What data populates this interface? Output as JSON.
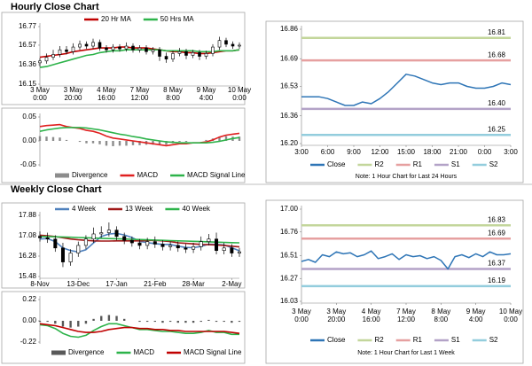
{
  "chart_data": [
    {
      "type": "candlestick",
      "title": "Hourly Close Chart",
      "categories": [
        [
          "3 May",
          "0:00"
        ],
        null,
        null,
        null,
        null,
        [
          "3 May",
          "20:00"
        ],
        null,
        null,
        null,
        null,
        [
          "4 May",
          "16:00"
        ],
        null,
        null,
        null,
        null,
        [
          "7 May",
          "12:00"
        ],
        null,
        null,
        null,
        null,
        [
          "8 May",
          "8:00"
        ],
        null,
        null,
        null,
        null,
        [
          "9 May",
          "4:00"
        ],
        null,
        null,
        null,
        null,
        [
          "10 May",
          "0:00"
        ]
      ],
      "open": [
        16.38,
        16.4,
        16.44,
        16.47,
        16.52,
        16.5,
        16.55,
        16.58,
        16.56,
        16.6,
        16.54,
        16.52,
        16.55,
        16.53,
        16.56,
        16.52,
        16.54,
        16.5,
        16.52,
        16.45,
        16.42,
        16.48,
        16.5,
        16.46,
        16.49,
        16.45,
        16.48,
        16.55,
        16.62,
        16.58,
        16.56
      ],
      "high": [
        16.43,
        16.48,
        16.52,
        16.56,
        16.56,
        16.59,
        16.62,
        16.61,
        16.64,
        16.63,
        16.57,
        16.58,
        16.58,
        16.6,
        16.59,
        16.57,
        16.57,
        16.55,
        16.55,
        16.49,
        16.51,
        16.54,
        16.53,
        16.52,
        16.52,
        16.51,
        16.58,
        16.66,
        16.65,
        16.61,
        16.6
      ],
      "low": [
        16.34,
        16.37,
        16.41,
        16.44,
        16.47,
        16.47,
        16.52,
        16.53,
        16.53,
        16.51,
        16.49,
        16.49,
        16.5,
        16.5,
        16.49,
        16.49,
        16.47,
        16.47,
        16.4,
        16.38,
        16.39,
        16.45,
        16.42,
        16.43,
        16.41,
        16.42,
        16.45,
        16.52,
        16.55,
        16.53,
        16.53
      ],
      "close": [
        16.4,
        16.44,
        16.47,
        16.52,
        16.5,
        16.55,
        16.58,
        16.56,
        16.6,
        16.54,
        16.52,
        16.55,
        16.53,
        16.56,
        16.52,
        16.54,
        16.5,
        16.52,
        16.45,
        16.42,
        16.48,
        16.5,
        16.46,
        16.49,
        16.45,
        16.48,
        16.55,
        16.62,
        16.58,
        16.56,
        16.57
      ],
      "series": [
        {
          "name": "20 Hr MA",
          "color": "#c00000",
          "values": [
            16.44,
            16.45,
            16.46,
            16.47,
            16.48,
            16.5,
            16.51,
            16.52,
            16.53,
            16.54,
            16.54,
            16.54,
            16.55,
            16.55,
            16.54,
            16.54,
            16.54,
            16.53,
            16.52,
            16.51,
            16.5,
            16.5,
            16.49,
            16.49,
            16.48,
            16.48,
            16.49,
            16.5,
            16.51,
            16.51,
            16.52
          ]
        },
        {
          "name": "50 Hrs MA",
          "color": "#2db34a",
          "values": [
            16.33,
            16.34,
            16.36,
            16.38,
            16.4,
            16.42,
            16.44,
            16.46,
            16.47,
            16.49,
            16.5,
            16.51,
            16.51,
            16.52,
            16.52,
            16.52,
            16.52,
            16.52,
            16.52,
            16.51,
            16.51,
            16.51,
            16.51,
            16.51,
            16.5,
            16.5,
            16.5,
            16.51,
            16.51,
            16.51,
            16.52
          ]
        }
      ],
      "ylim": [
        16.15,
        16.77
      ],
      "yticks": [
        16.15,
        16.36,
        16.57,
        16.77
      ]
    },
    {
      "type": "combo",
      "series": [
        {
          "name": "Divergence",
          "type": "bar",
          "color": "#8c8c8c",
          "values": [
            0.01,
            0.009,
            0.008,
            0.007,
            0.002,
            0.0,
            -0.002,
            -0.005,
            -0.005,
            -0.007,
            -0.01,
            -0.011,
            -0.01,
            -0.01,
            -0.009,
            -0.009,
            -0.008,
            -0.008,
            -0.008,
            -0.008,
            -0.005,
            -0.002,
            -0.002,
            0.0,
            0.0,
            0.002,
            0.005,
            0.009,
            0.01,
            0.009,
            0.009
          ]
        },
        {
          "name": "MACD",
          "type": "line",
          "color": "#e02020",
          "values": [
            0.03,
            0.032,
            0.033,
            0.034,
            0.03,
            0.028,
            0.026,
            0.022,
            0.02,
            0.016,
            0.01,
            0.006,
            0.004,
            0.002,
            0.0,
            -0.002,
            -0.004,
            -0.006,
            -0.008,
            -0.01,
            -0.008,
            -0.006,
            -0.006,
            -0.004,
            -0.004,
            -0.002,
            0.002,
            0.008,
            0.012,
            0.014,
            0.016
          ]
        },
        {
          "name": "MACD Signal Line",
          "type": "line",
          "color": "#2db34a",
          "values": [
            0.02,
            0.023,
            0.025,
            0.027,
            0.028,
            0.028,
            0.028,
            0.027,
            0.025,
            0.023,
            0.02,
            0.017,
            0.014,
            0.012,
            0.009,
            0.007,
            0.004,
            0.002,
            0.0,
            -0.002,
            -0.003,
            -0.004,
            -0.004,
            -0.004,
            -0.004,
            -0.004,
            -0.003,
            -0.001,
            0.002,
            0.005,
            0.007
          ]
        }
      ],
      "ylim": [
        -0.05,
        0.05
      ],
      "yticks": [
        0.05,
        {
          "value": 0,
          "label": "0.00"
        },
        -0.05
      ]
    },
    {
      "type": "line",
      "categories": [
        "3:00",
        null,
        null,
        "6:00",
        null,
        null,
        "9:00",
        null,
        null,
        "12:00",
        null,
        null,
        "15:00",
        null,
        null,
        "18:00",
        null,
        null,
        "21:00",
        null,
        null,
        "0:00",
        null,
        null,
        "3:00"
      ],
      "series": [
        {
          "name": "Close",
          "color": "#2e75b6",
          "values": [
            16.47,
            16.47,
            16.47,
            16.46,
            16.44,
            16.42,
            16.42,
            16.44,
            16.43,
            16.46,
            16.5,
            16.55,
            16.6,
            16.59,
            16.57,
            16.55,
            16.54,
            16.55,
            16.55,
            16.53,
            16.52,
            16.52,
            16.53,
            16.55,
            16.54
          ]
        }
      ],
      "levels": {
        "names": [
          "R2",
          "R1",
          "S1",
          "S2"
        ],
        "colors": [
          "#c3d69b",
          "#e6a0a0",
          "#b3a2c7",
          "#93cddd"
        ],
        "values": [
          16.81,
          16.68,
          16.4,
          16.25
        ],
        "value_labels": [
          "16.81",
          "16.68",
          "16.40",
          "16.25"
        ]
      },
      "ylim": [
        16.2,
        16.86
      ],
      "yticks": [
        {
          "value": 16.2,
          "label": "16.20"
        },
        16.36,
        16.53,
        16.69,
        16.86
      ],
      "note": "Note: 1 Hour Chart for Last 24 Hours"
    },
    {
      "type": "candlestick",
      "title": "Weekly Close Chart",
      "categories": [
        "8-Nov",
        null,
        null,
        null,
        null,
        "13-Dec",
        null,
        null,
        null,
        null,
        "17-Jan",
        null,
        null,
        null,
        null,
        "21-Feb",
        null,
        null,
        null,
        null,
        "28-Mar",
        null,
        null,
        null,
        null,
        "2-May",
        null
      ],
      "open": [
        17.05,
        17.0,
        16.95,
        16.6,
        16.05,
        16.4,
        16.7,
        16.95,
        17.15,
        17.2,
        17.3,
        17.05,
        16.9,
        16.8,
        16.7,
        16.85,
        16.75,
        16.65,
        16.7,
        16.6,
        16.55,
        16.65,
        16.85,
        16.95,
        16.5,
        16.6,
        16.4
      ],
      "high": [
        17.25,
        17.2,
        17.1,
        16.8,
        16.55,
        16.85,
        17.1,
        17.4,
        17.45,
        17.6,
        17.45,
        17.2,
        17.05,
        16.95,
        17.0,
        17.05,
        16.9,
        16.85,
        16.85,
        16.75,
        16.8,
        17.05,
        17.15,
        17.2,
        16.8,
        16.75,
        16.6
      ],
      "low": [
        16.85,
        16.8,
        16.45,
        15.85,
        15.9,
        16.25,
        16.55,
        16.8,
        17.0,
        17.05,
        16.9,
        16.75,
        16.65,
        16.55,
        16.55,
        16.6,
        16.5,
        16.5,
        16.45,
        16.4,
        16.4,
        16.5,
        16.7,
        16.35,
        16.35,
        16.25,
        16.25
      ],
      "close": [
        17.0,
        16.95,
        16.6,
        16.05,
        16.4,
        16.7,
        16.95,
        17.15,
        17.2,
        17.3,
        17.05,
        16.9,
        16.8,
        16.7,
        16.85,
        16.75,
        16.65,
        16.7,
        16.6,
        16.55,
        16.65,
        16.85,
        16.95,
        16.5,
        16.6,
        16.4,
        16.45
      ],
      "series": [
        {
          "name": "4 Week",
          "color": "#4f81bd",
          "values": [
            16.95,
            16.97,
            16.85,
            16.6,
            16.5,
            16.44,
            16.53,
            16.8,
            17.05,
            17.15,
            17.17,
            17.11,
            17.01,
            16.86,
            16.81,
            16.77,
            16.74,
            16.74,
            16.67,
            16.62,
            16.61,
            16.66,
            16.75,
            16.74,
            16.72,
            16.61,
            16.49
          ]
        },
        {
          "name": "13 Week",
          "color": "#a01818",
          "values": [
            17.1,
            17.08,
            17.05,
            17.0,
            16.95,
            16.92,
            16.9,
            16.88,
            16.87,
            16.87,
            16.88,
            16.88,
            16.88,
            16.88,
            16.89,
            16.9,
            16.88,
            16.85,
            16.8,
            16.78,
            16.76,
            16.74,
            16.73,
            16.72,
            16.7,
            16.67,
            16.64
          ]
        },
        {
          "name": "40 Week",
          "color": "#2db34a",
          "values": [
            17.05,
            17.05,
            17.04,
            17.03,
            17.02,
            17.01,
            17.0,
            16.99,
            16.98,
            16.97,
            16.96,
            16.95,
            16.94,
            16.93,
            16.92,
            16.91,
            16.9,
            16.89,
            16.88,
            16.87,
            16.86,
            16.85,
            16.84,
            16.83,
            16.82,
            16.81,
            16.8
          ]
        }
      ],
      "ylim": [
        15.48,
        17.88
      ],
      "yticks": [
        15.48,
        16.28,
        17.08,
        17.88
      ]
    },
    {
      "type": "combo",
      "series": [
        {
          "name": "Divergence",
          "type": "bar",
          "color": "#595959",
          "values": [
            -0.01,
            -0.01,
            -0.03,
            -0.06,
            -0.07,
            -0.06,
            -0.03,
            0.02,
            0.05,
            0.06,
            0.05,
            0.02,
            0.0,
            -0.01,
            -0.01,
            -0.01,
            -0.02,
            -0.01,
            -0.02,
            -0.02,
            -0.02,
            -0.01,
            0.01,
            -0.01,
            -0.01,
            -0.02,
            -0.01
          ]
        },
        {
          "name": "MACD",
          "type": "line",
          "color": "#2db34a",
          "values": [
            -0.04,
            -0.05,
            -0.08,
            -0.13,
            -0.16,
            -0.17,
            -0.15,
            -0.1,
            -0.06,
            -0.03,
            -0.03,
            -0.05,
            -0.07,
            -0.09,
            -0.09,
            -0.1,
            -0.11,
            -0.11,
            -0.12,
            -0.13,
            -0.13,
            -0.12,
            -0.1,
            -0.12,
            -0.12,
            -0.14,
            -0.14
          ]
        },
        {
          "name": "MACD Signal Line",
          "type": "line",
          "color": "#c00000",
          "values": [
            -0.03,
            -0.04,
            -0.05,
            -0.07,
            -0.09,
            -0.11,
            -0.12,
            -0.12,
            -0.11,
            -0.09,
            -0.08,
            -0.07,
            -0.07,
            -0.08,
            -0.08,
            -0.09,
            -0.09,
            -0.1,
            -0.1,
            -0.11,
            -0.11,
            -0.11,
            -0.11,
            -0.11,
            -0.11,
            -0.12,
            -0.13
          ]
        }
      ],
      "ylim": [
        -0.22,
        0.22
      ],
      "yticks": [
        0.22,
        {
          "value": 0,
          "label": "0.00"
        },
        -0.22
      ]
    },
    {
      "type": "line",
      "categories": [
        [
          "3 May",
          "0:00"
        ],
        null,
        null,
        null,
        null,
        [
          "3 May",
          "20:00"
        ],
        null,
        null,
        null,
        null,
        [
          "4 May",
          "16:00"
        ],
        null,
        null,
        null,
        null,
        [
          "7 May",
          "12:00"
        ],
        null,
        null,
        null,
        null,
        [
          "8 May",
          "8:00"
        ],
        null,
        null,
        null,
        null,
        [
          "9 May",
          "4:00"
        ],
        null,
        null,
        null,
        null,
        [
          "10 May",
          "0:00"
        ]
      ],
      "series": [
        {
          "name": "Close",
          "color": "#2e75b6",
          "values": [
            16.45,
            16.47,
            16.44,
            16.52,
            16.5,
            16.55,
            16.53,
            16.54,
            16.5,
            16.52,
            16.56,
            16.48,
            16.5,
            16.53,
            16.47,
            16.52,
            16.5,
            16.51,
            16.48,
            16.5,
            16.46,
            16.37,
            16.5,
            16.52,
            16.49,
            16.53,
            16.5,
            16.55,
            16.52,
            16.52,
            16.53
          ]
        }
      ],
      "levels": {
        "names": [
          "R2",
          "R1",
          "S1",
          "S2"
        ],
        "colors": [
          "#c3d69b",
          "#e6a0a0",
          "#b3a2c7",
          "#93cddd"
        ],
        "values": [
          16.83,
          16.69,
          16.37,
          16.19
        ],
        "value_labels": [
          "16.83",
          "16.69",
          "16.37",
          "16.19"
        ]
      },
      "ylim": [
        16.03,
        17.0
      ],
      "yticks": [
        16.03,
        16.27,
        16.51,
        16.76,
        {
          "value": 17,
          "label": "17.00"
        }
      ],
      "note": "Note: 1 Hour Chart for Last 1 Week"
    }
  ]
}
